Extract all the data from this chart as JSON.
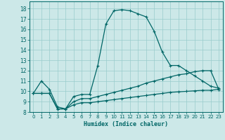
{
  "title": "",
  "xlabel": "Humidex (Indice chaleur)",
  "x_ticks": [
    0,
    1,
    2,
    3,
    4,
    5,
    6,
    7,
    8,
    9,
    10,
    11,
    12,
    13,
    14,
    15,
    16,
    17,
    18,
    19,
    20,
    21,
    22,
    23
  ],
  "y_ticks": [
    8,
    9,
    10,
    11,
    12,
    13,
    14,
    15,
    16,
    17,
    18
  ],
  "xlim": [
    -0.5,
    23.5
  ],
  "ylim": [
    8.0,
    18.7
  ],
  "bg_color": "#cce8e8",
  "grid_color": "#99cccc",
  "line_color": "#006666",
  "curve1": [
    9.8,
    11.0,
    10.2,
    8.5,
    8.3,
    9.5,
    9.7,
    9.7,
    12.5,
    16.5,
    17.8,
    17.9,
    17.8,
    17.5,
    17.2,
    15.8,
    13.8,
    12.5,
    12.5,
    12.0,
    11.5,
    11.0,
    10.5,
    10.3
  ],
  "curve2": [
    9.8,
    9.8,
    9.8,
    8.3,
    8.3,
    9.0,
    9.3,
    9.3,
    9.5,
    9.7,
    9.9,
    10.1,
    10.3,
    10.5,
    10.8,
    11.0,
    11.2,
    11.4,
    11.6,
    11.7,
    11.9,
    12.0,
    12.0,
    10.2
  ],
  "curve3": [
    9.8,
    9.8,
    9.8,
    8.3,
    8.3,
    8.7,
    8.9,
    8.9,
    9.0,
    9.1,
    9.2,
    9.3,
    9.4,
    9.5,
    9.6,
    9.7,
    9.8,
    9.9,
    9.95,
    10.0,
    10.05,
    10.1,
    10.1,
    10.2
  ]
}
